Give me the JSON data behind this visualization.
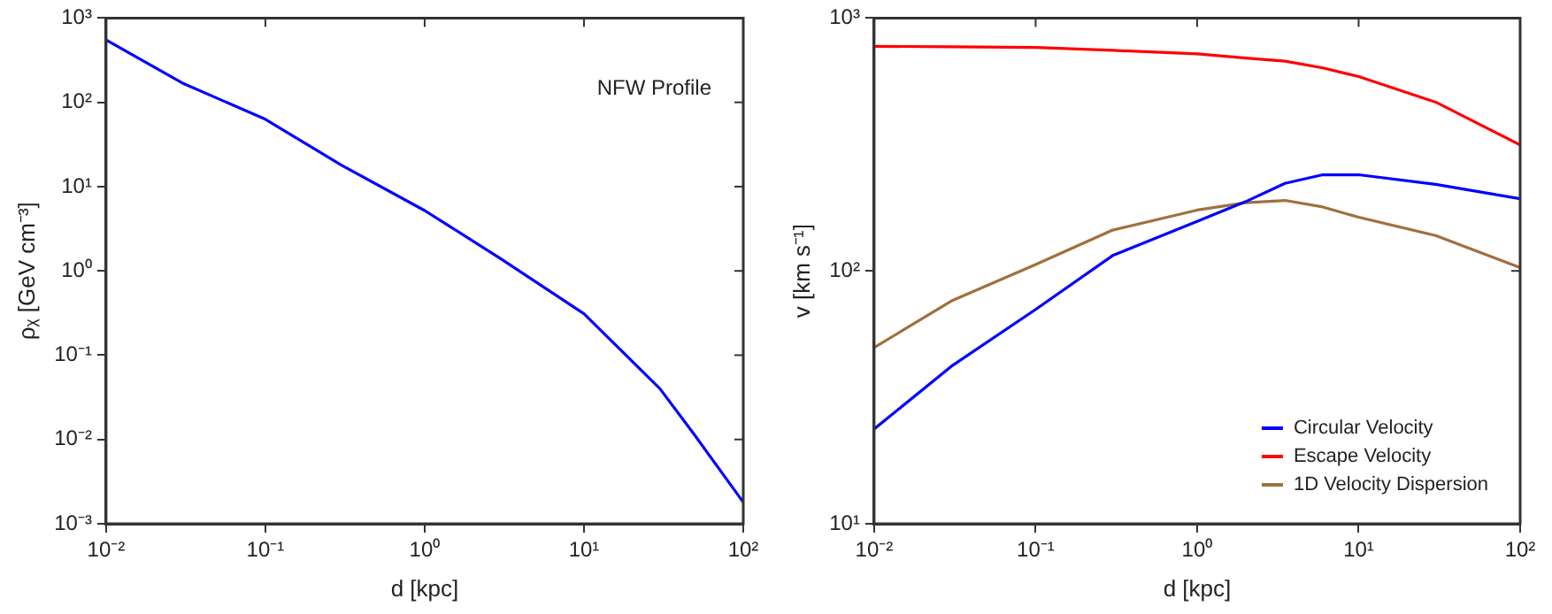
{
  "chart_data": [
    {
      "type": "line",
      "xlabel": "d [kpc]",
      "ylabel": "ρᵪ [GeV cm⁻³]",
      "annotations": [
        "NFW Profile"
      ],
      "log": "xy",
      "grid": false,
      "legend": false,
      "marker": "none",
      "line_style": "solid",
      "x": [
        0.01,
        0.03,
        0.1,
        0.3,
        1,
        3,
        10,
        30,
        50,
        100
      ],
      "series": [
        {
          "color": "#0000ff",
          "values": [
            550,
            170,
            63,
            18,
            5.2,
            1.4,
            0.31,
            0.04,
            0.011,
            0.0018
          ]
        }
      ],
      "xlim": [
        0.01,
        100
      ],
      "ylim": [
        0.001,
        1000
      ],
      "xticks": [
        {
          "value": 0.01,
          "label": "10⁻²"
        },
        {
          "value": 0.1,
          "label": "10⁻¹"
        },
        {
          "value": 1,
          "label": "10⁰"
        },
        {
          "value": 10,
          "label": "10¹"
        },
        {
          "value": 100,
          "label": "10²"
        }
      ],
      "yticks": [
        {
          "value": 0.001,
          "label": "10⁻³"
        },
        {
          "value": 0.01,
          "label": "10⁻²"
        },
        {
          "value": 0.1,
          "label": "10⁻¹"
        },
        {
          "value": 1,
          "label": "10⁰"
        },
        {
          "value": 10,
          "label": "10¹"
        },
        {
          "value": 100,
          "label": "10²"
        },
        {
          "value": 1000,
          "label": "10³"
        }
      ]
    },
    {
      "type": "line",
      "xlabel": "d [kpc]",
      "ylabel": "v [km s⁻¹]",
      "log": "xy",
      "grid": false,
      "legend": "bottom right",
      "marker": "none",
      "line_style": "solid",
      "x": [
        0.01,
        0.03,
        0.1,
        0.3,
        1,
        2,
        3.5,
        6,
        10,
        30,
        100
      ],
      "series": [
        {
          "name": "Circular Velocity",
          "color": "#0000ff",
          "values": [
            23.7,
            41.9,
            70.4,
            115,
            157,
            188,
            222,
            240,
            240,
            220,
            193
          ]
        },
        {
          "name": "Escape Velocity",
          "color": "#ff0000",
          "values": [
            773,
            770,
            765,
            745,
            722,
            695,
            675,
            635,
            587,
            465,
            315
          ]
        },
        {
          "name": "1D Velocity Dispersion",
          "color": "#a0703c",
          "values": [
            49.7,
            76,
            106,
            145,
            174,
            186,
            190,
            179,
            163,
            138,
            103
          ]
        }
      ],
      "xlim": [
        0.01,
        100
      ],
      "ylim": [
        10,
        1000
      ],
      "xticks": [
        {
          "value": 0.01,
          "label": "10⁻²"
        },
        {
          "value": 0.1,
          "label": "10⁻¹"
        },
        {
          "value": 1,
          "label": "10⁰"
        },
        {
          "value": 10,
          "label": "10¹"
        },
        {
          "value": 100,
          "label": "10²"
        }
      ],
      "yticks": [
        {
          "value": 10,
          "label": "10¹"
        },
        {
          "value": 100,
          "label": "10²"
        },
        {
          "value": 1000,
          "label": "10³"
        }
      ]
    }
  ]
}
